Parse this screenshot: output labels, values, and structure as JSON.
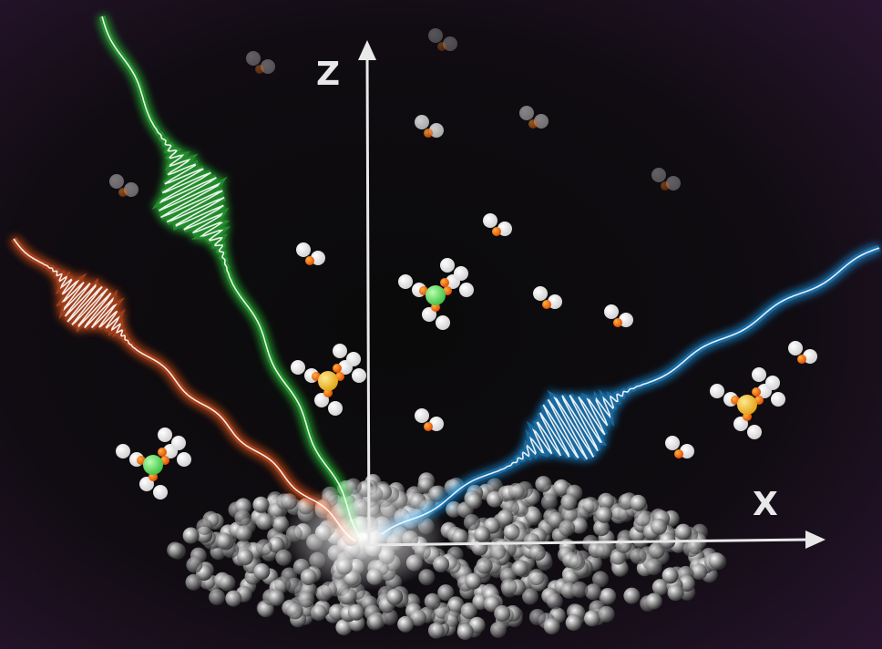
{
  "axes": {
    "z": {
      "label": "Z"
    },
    "x": {
      "label": "X"
    }
  }
}
